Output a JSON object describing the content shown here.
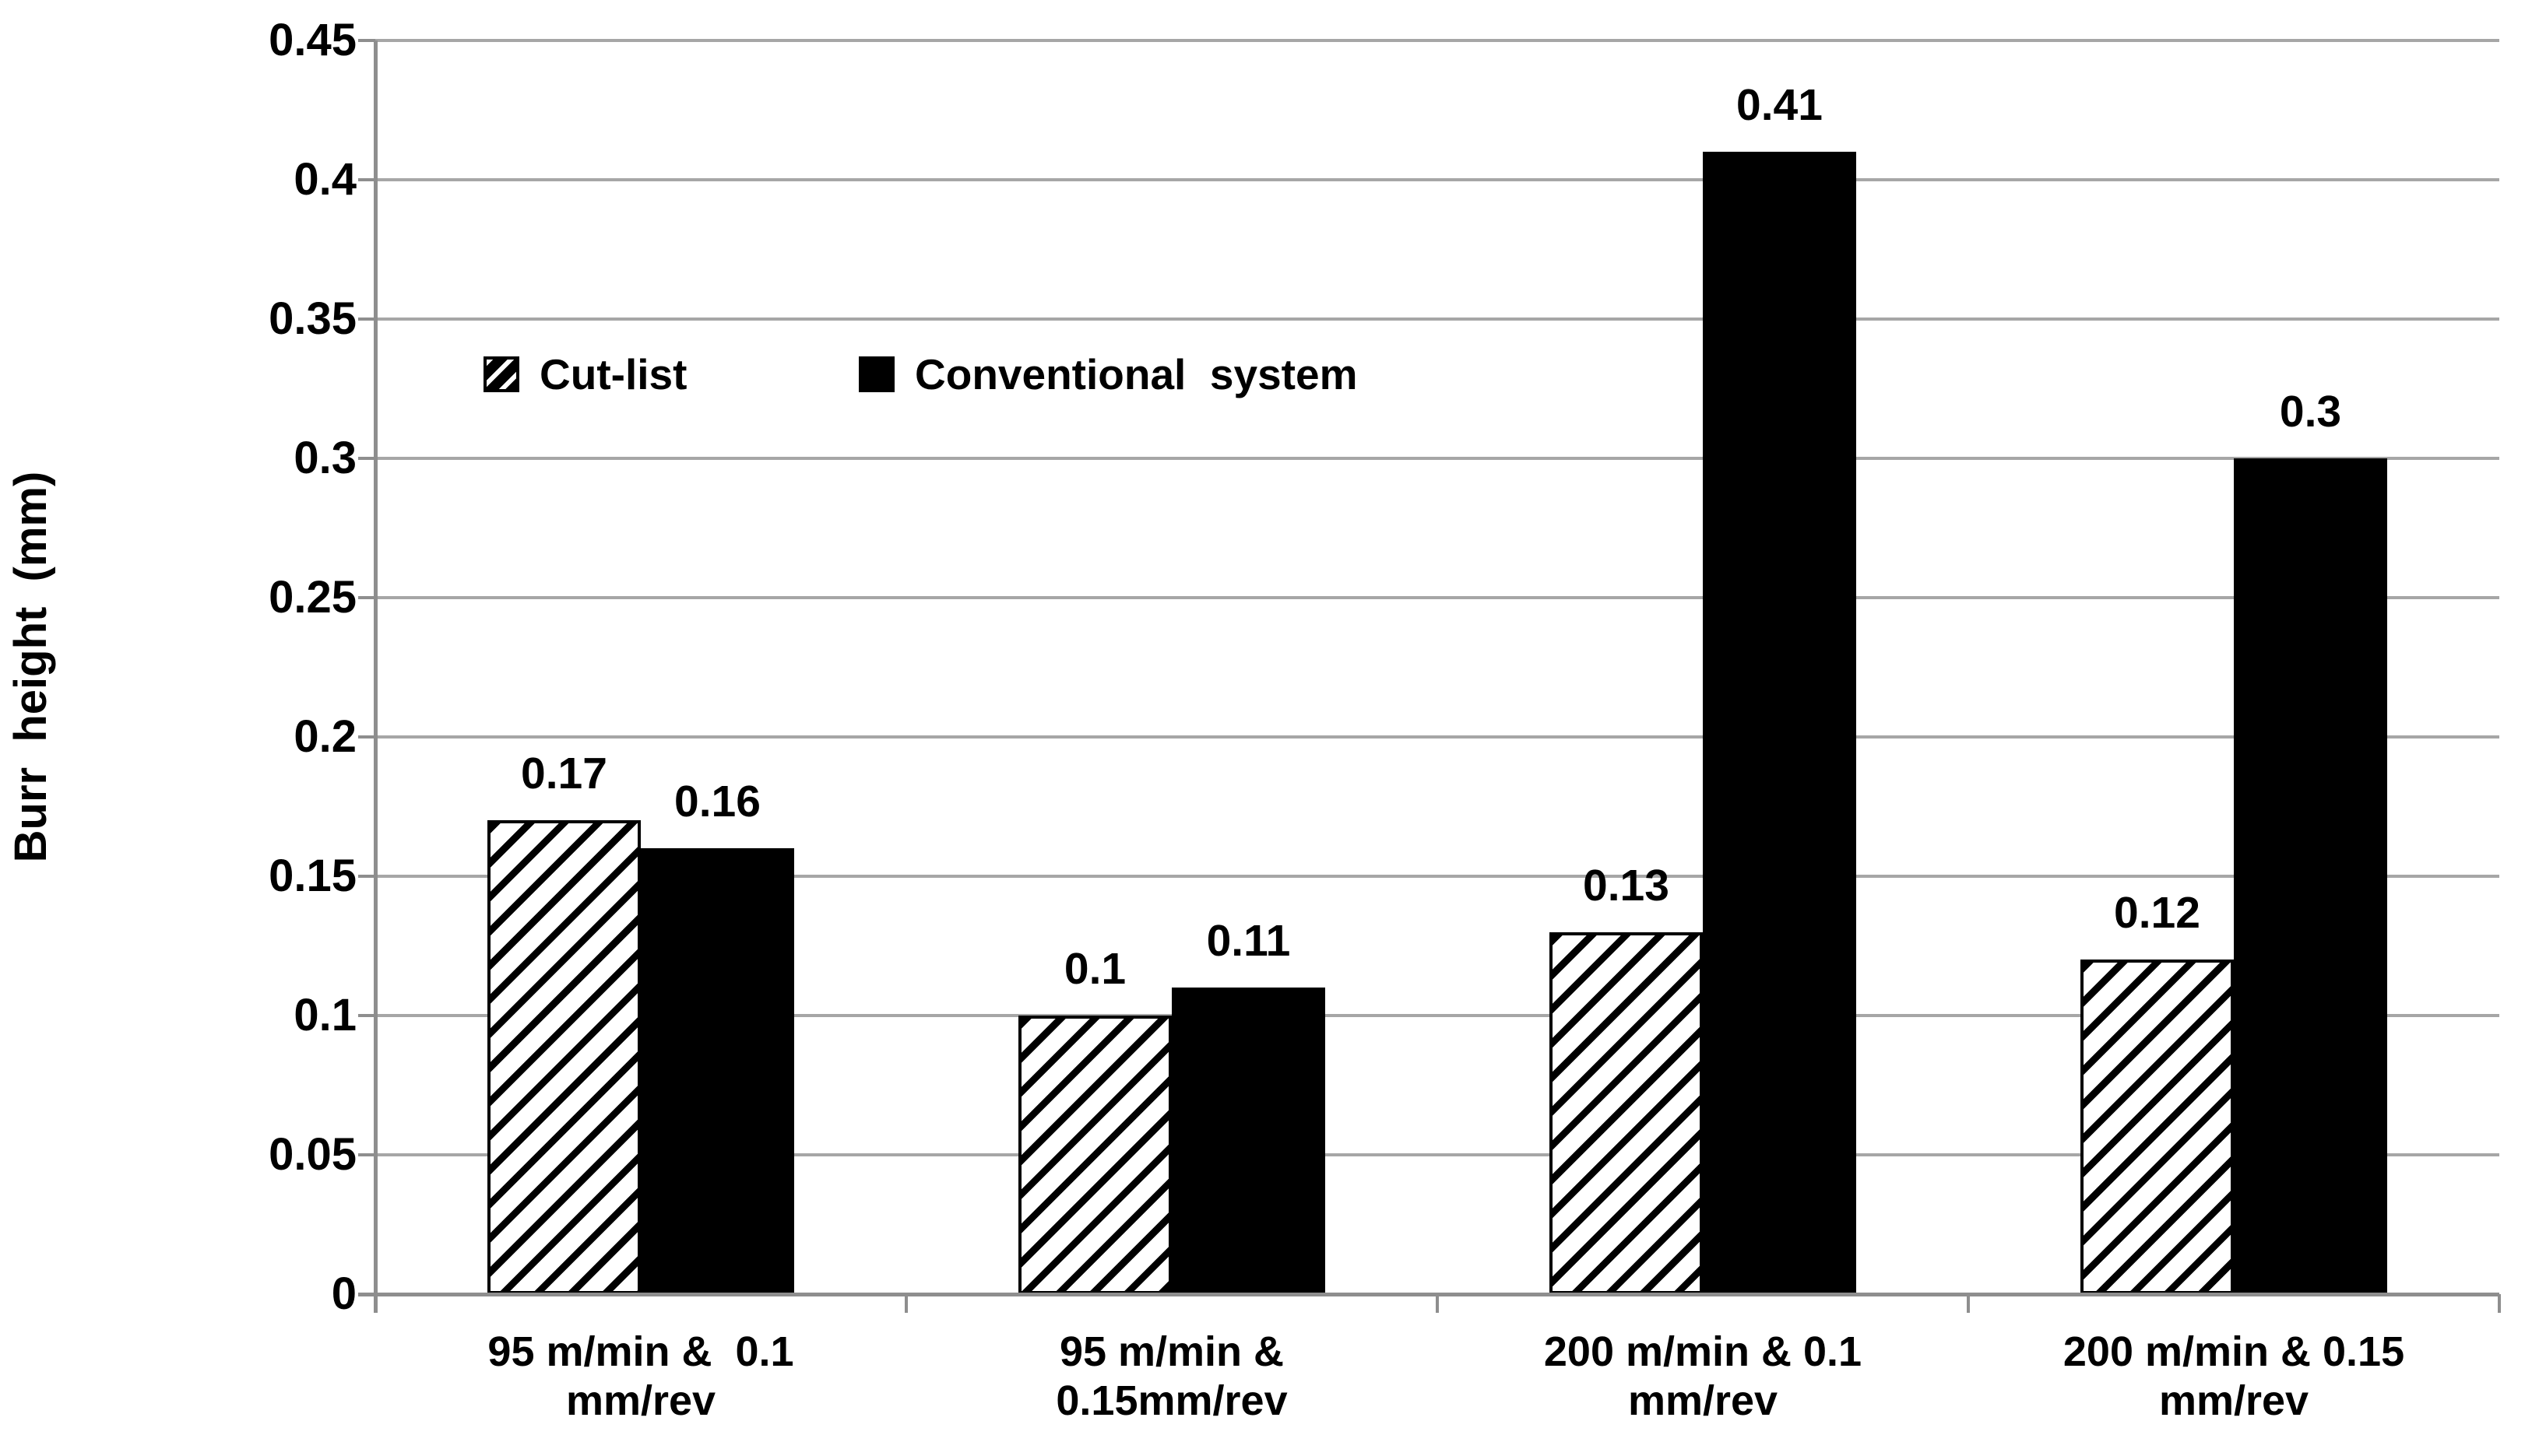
{
  "chart_data": {
    "type": "bar",
    "title": "",
    "ylabel": "Burr  height  (mm)",
    "xlabel": "",
    "ylim": [
      0,
      0.45
    ],
    "ytick_step": 0.05,
    "yticks": [
      "0",
      "0.05",
      "0.1",
      "0.15",
      "0.2",
      "0.25",
      "0.3",
      "0.35",
      "0.4",
      "0.45"
    ],
    "grid": true,
    "legend_position": "inside-upper-left",
    "categories": [
      {
        "lines": [
          "95 m/min &  0.1",
          "mm/rev"
        ]
      },
      {
        "lines": [
          "95 m/min &",
          "0.15mm/rev"
        ]
      },
      {
        "lines": [
          "200 m/min & 0.1",
          "mm/rev"
        ]
      },
      {
        "lines": [
          "200 m/min & 0.15",
          "mm/rev"
        ]
      }
    ],
    "series": [
      {
        "name": "Cut-list",
        "style": "hatched",
        "values": [
          0.17,
          0.1,
          0.13,
          0.12
        ],
        "labels": [
          "0.17",
          "0.1",
          "0.13",
          "0.12"
        ]
      },
      {
        "name": "Conventional  system",
        "style": "solid",
        "values": [
          0.16,
          0.11,
          0.41,
          0.3
        ],
        "labels": [
          "0.16",
          "0.11",
          "0.41",
          "0.3"
        ]
      }
    ],
    "colors": {
      "bar_fill": "#000000",
      "hatch_background": "#ffffff",
      "gridline": "#a6a6a6",
      "axis": "#8e8e8e",
      "text": "#000000",
      "background": "#ffffff"
    }
  }
}
